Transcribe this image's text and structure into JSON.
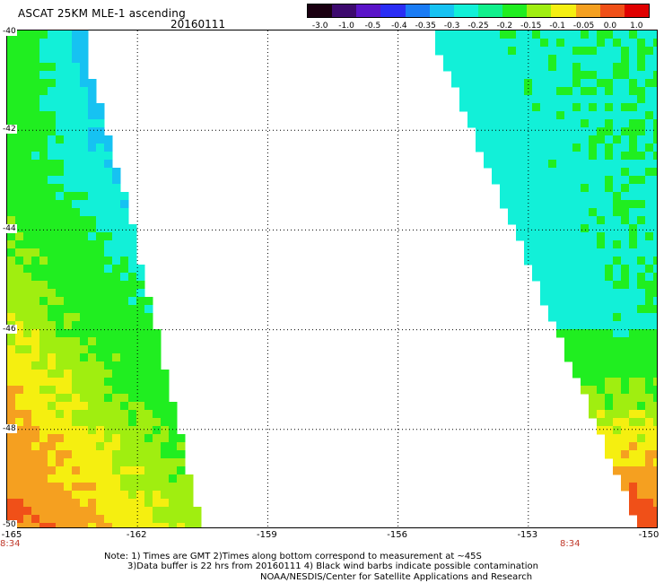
{
  "header": {
    "title": "ASCAT 25KM MLE-1 ascending",
    "date": "20160111"
  },
  "colorbar": {
    "labels": [
      "-3.0",
      "-1.0",
      "-0.5",
      "-0.4",
      "-0.35",
      "-0.3",
      "-0.25",
      "-0.2",
      "-0.15",
      "-0.1",
      "-0.05",
      "0.0",
      "1.0"
    ],
    "colors": [
      "#1a0010",
      "#3d0a6e",
      "#5a14c8",
      "#2a2df5",
      "#1a7cf5",
      "#16c2f2",
      "#12f0d8",
      "#10f08c",
      "#20ee20",
      "#a0ee10",
      "#f5ef10",
      "#f5a020",
      "#f05018",
      "#e00000"
    ]
  },
  "map": {
    "lat_labels": [
      "-40",
      "-42",
      "-44",
      "-46",
      "-48",
      "-50"
    ],
    "lon_labels": [
      "-165",
      "-162",
      "-159",
      "-156",
      "-153",
      "-150"
    ],
    "time_labels": [
      "8:34",
      "8:34"
    ],
    "lat_range": [
      -50,
      -40
    ],
    "lon_range": [
      -165,
      -150
    ],
    "grid": true,
    "palette": {
      "cyan": "#12f0d8",
      "aqua": "#16c2f2",
      "green": "#20ee20",
      "lightgreen": "#a0ee10",
      "yellow": "#f5ef10",
      "orange": "#f5a020",
      "redorange": "#f05018"
    }
  },
  "notes": {
    "line1": "Note: 1) Times are GMT 2)Times along bottom correspond to measurement at ~45S",
    "line2": "3)Data buffer is 22 hrs from 20160111 4) Black wind barbs indicate possible contamination",
    "line3": "NOAA/NESDIS/Center for Satellite Applications and Research"
  }
}
